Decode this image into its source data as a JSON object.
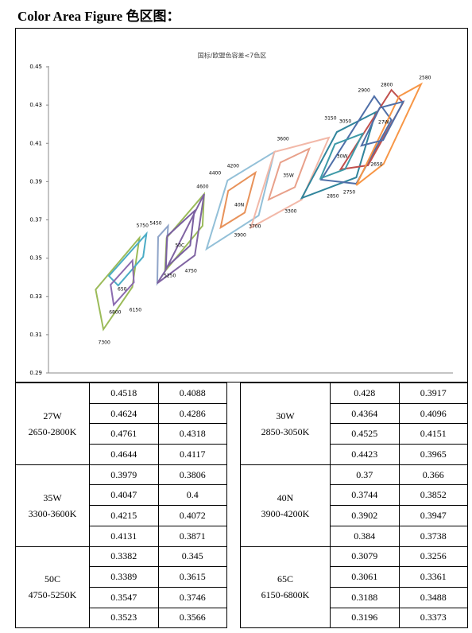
{
  "heading": "Color Area Figure 色区图：",
  "chart": {
    "type": "polygon",
    "title": "国标/欧盟色容差<7色区",
    "xlim": [
      0.27,
      0.51
    ],
    "ylim": [
      0.29,
      0.45
    ],
    "yticks": [
      0.29,
      0.31,
      0.33,
      0.35,
      0.37,
      0.39,
      0.41,
      0.43,
      0.45
    ],
    "group_colors": [
      "#4f6fa8",
      "#3e9aa8",
      "#e8a08a",
      "#e8925a",
      "#7a5fa0",
      "#8c6bb0"
    ],
    "outlines": [
      {
        "color": "#9bbb59",
        "x": [
          0.2974,
          0.3228,
          0.3187,
          0.3019
        ],
        "y": [
          0.3336,
          0.3606,
          0.3349,
          0.3128
        ]
      },
      {
        "color": "#4bacc6",
        "x": [
          0.3051,
          0.3269,
          0.325,
          0.3105
        ],
        "y": [
          0.3407,
          0.3627,
          0.3507,
          0.3357
        ]
      },
      {
        "color": "#8fa4c8",
        "x": [
          0.3332,
          0.3337,
          0.3395,
          0.3377
        ],
        "y": [
          0.3369,
          0.3611,
          0.3669,
          0.3432
        ]
      },
      {
        "color": "#9bbb59",
        "x": [
          0.3377,
          0.3386,
          0.3604,
          0.3595
        ],
        "y": [
          0.3432,
          0.3606,
          0.3835,
          0.3669
        ]
      },
      {
        "color": "#8064a2",
        "x": [
          0.3332,
          0.3377,
          0.3604,
          0.355
        ],
        "y": [
          0.3369,
          0.3432,
          0.3835,
          0.3515
        ]
      },
      {
        "color": "#93c0d8",
        "x": [
          0.3618,
          0.374,
          0.4012,
          0.3921
        ],
        "y": [
          0.3548,
          0.3906,
          0.4055,
          0.3723
        ]
      },
      {
        "color": "#f2b8a8",
        "x": [
          0.3876,
          0.4012,
          0.4329,
          0.4171
        ],
        "y": [
          0.366,
          0.4055,
          0.413,
          0.3806
        ]
      },
      {
        "color": "#31859c",
        "x": [
          0.4171,
          0.4375,
          0.4601,
          0.4488
        ],
        "y": [
          0.3814,
          0.4159,
          0.4263,
          0.3922
        ]
      },
      {
        "color": "#4f6fa8",
        "x": [
          0.4284,
          0.4592,
          0.4692,
          0.4488
        ],
        "y": [
          0.391,
          0.4346,
          0.4222,
          0.3889
        ]
      },
      {
        "color": "#c0504d",
        "x": [
          0.4397,
          0.4692,
          0.476,
          0.4556
        ],
        "y": [
          0.3964,
          0.4379,
          0.4313,
          0.3985
        ]
      },
      {
        "color": "#f79646",
        "x": [
          0.4488,
          0.4737,
          0.4864,
          0.4647
        ],
        "y": [
          0.3881,
          0.4346,
          0.4409,
          0.3993
        ]
      }
    ],
    "annotations": [
      {
        "text": "2580",
        "x": 0.4887,
        "y": 0.4442
      },
      {
        "text": "2800",
        "x": 0.4665,
        "y": 0.4404
      },
      {
        "text": "2900",
        "x": 0.4533,
        "y": 0.4375
      },
      {
        "text": "27W",
        "x": 0.4647,
        "y": 0.4209
      },
      {
        "text": "3150",
        "x": 0.4338,
        "y": 0.423
      },
      {
        "text": "3050",
        "x": 0.4424,
        "y": 0.4213
      },
      {
        "text": "30W",
        "x": 0.4406,
        "y": 0.403
      },
      {
        "text": "2650",
        "x": 0.4606,
        "y": 0.3989
      },
      {
        "text": "2750",
        "x": 0.4447,
        "y": 0.3843
      },
      {
        "text": "2850",
        "x": 0.4352,
        "y": 0.3823
      },
      {
        "text": "3600",
        "x": 0.4062,
        "y": 0.4122
      },
      {
        "text": "35W",
        "x": 0.4094,
        "y": 0.3931
      },
      {
        "text": "3300",
        "x": 0.4107,
        "y": 0.3744
      },
      {
        "text": "4200",
        "x": 0.3772,
        "y": 0.398
      },
      {
        "text": "4400",
        "x": 0.3667,
        "y": 0.3943
      },
      {
        "text": "40N",
        "x": 0.3808,
        "y": 0.3777
      },
      {
        "text": "3700",
        "x": 0.3899,
        "y": 0.3665
      },
      {
        "text": "3900",
        "x": 0.3813,
        "y": 0.3619
      },
      {
        "text": "4600",
        "x": 0.3595,
        "y": 0.3872
      },
      {
        "text": "5450",
        "x": 0.3323,
        "y": 0.3681
      },
      {
        "text": "50C",
        "x": 0.3463,
        "y": 0.3565
      },
      {
        "text": "5250",
        "x": 0.3405,
        "y": 0.3407
      },
      {
        "text": "4750",
        "x": 0.3527,
        "y": 0.3432
      },
      {
        "text": "5750",
        "x": 0.3246,
        "y": 0.3669
      },
      {
        "text": "650",
        "x": 0.3128,
        "y": 0.3336
      },
      {
        "text": "6800",
        "x": 0.3087,
        "y": 0.3216
      },
      {
        "text": "6150",
        "x": 0.3205,
        "y": 0.3228
      },
      {
        "text": "7300",
        "x": 0.3024,
        "y": 0.3058
      }
    ]
  },
  "table": {
    "groups": [
      {
        "name": "27W",
        "range": "2650-2800K",
        "rows": [
          [
            0.4518,
            0.4088
          ],
          [
            0.4624,
            0.4286
          ],
          [
            0.4761,
            0.4318
          ],
          [
            0.4644,
            0.4117
          ]
        ]
      },
      {
        "name": "30W",
        "range": "2850-3050K",
        "rows": [
          [
            0.428,
            0.3917
          ],
          [
            0.4364,
            0.4096
          ],
          [
            0.4525,
            0.4151
          ],
          [
            0.4423,
            0.3965
          ]
        ]
      },
      {
        "name": "35W",
        "range": "3300-3600K",
        "rows": [
          [
            0.3979,
            0.3806
          ],
          [
            0.4047,
            0.4
          ],
          [
            0.4215,
            0.4072
          ],
          [
            0.4131,
            0.3871
          ]
        ]
      },
      {
        "name": "40N",
        "range": "3900-4200K",
        "rows": [
          [
            0.37,
            0.366
          ],
          [
            0.3744,
            0.3852
          ],
          [
            0.3902,
            0.3947
          ],
          [
            0.384,
            0.3738
          ]
        ]
      },
      {
        "name": "50C",
        "range": "4750-5250K",
        "rows": [
          [
            0.3382,
            0.345
          ],
          [
            0.3389,
            0.3615
          ],
          [
            0.3547,
            0.3746
          ],
          [
            0.3523,
            0.3566
          ]
        ]
      },
      {
        "name": "65C",
        "range": "6150-6800K",
        "rows": [
          [
            0.3079,
            0.3256
          ],
          [
            0.3061,
            0.3361
          ],
          [
            0.3188,
            0.3488
          ],
          [
            0.3196,
            0.3373
          ]
        ]
      }
    ]
  }
}
